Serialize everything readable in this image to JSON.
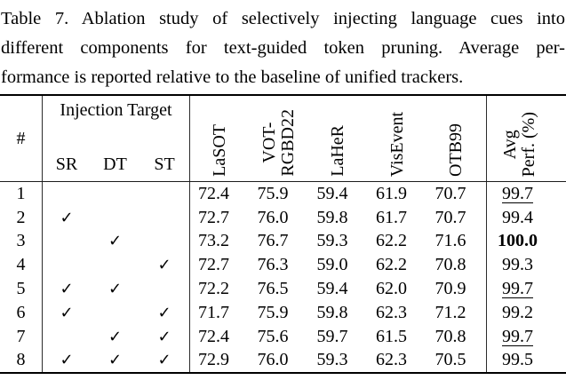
{
  "colors": {
    "text": "#000000",
    "background": "#ffffff",
    "rule": "#000000"
  },
  "caption": {
    "lines": [
      "Table 7. Ablation study of selectively injecting language cues into",
      "different components for text-guided token pruning. Average per-",
      "formance is reported relative to the baseline of unified trackers."
    ]
  },
  "table": {
    "checkmark": "✓",
    "row_index_header": "#",
    "group_header": "Injection Target",
    "injection_subcolumns": [
      "SR",
      "DT",
      "ST"
    ],
    "dataset_columns": [
      {
        "lines": [
          "LaSOT"
        ]
      },
      {
        "lines": [
          "VOT-",
          "RGBD22"
        ]
      },
      {
        "lines": [
          "LaHeR"
        ]
      },
      {
        "lines": [
          "VisEvent"
        ]
      },
      {
        "lines": [
          "OTB99"
        ]
      }
    ],
    "avg_column": {
      "lines": [
        "Avg",
        "Perf. (%)"
      ]
    },
    "rows": [
      {
        "num": "1",
        "checks": {
          "sr": false,
          "dt": false,
          "st": false
        },
        "values": [
          "72.4",
          "75.9",
          "59.4",
          "61.9",
          "70.7"
        ],
        "avg": "99.7",
        "avg_emphasis": "underline"
      },
      {
        "num": "2",
        "checks": {
          "sr": true,
          "dt": false,
          "st": false
        },
        "values": [
          "72.7",
          "76.0",
          "59.8",
          "61.7",
          "70.7"
        ],
        "avg": "99.4",
        "avg_emphasis": "none"
      },
      {
        "num": "3",
        "checks": {
          "sr": false,
          "dt": true,
          "st": false
        },
        "values": [
          "73.2",
          "76.7",
          "59.3",
          "62.2",
          "71.6"
        ],
        "avg": "100.0",
        "avg_emphasis": "bold"
      },
      {
        "num": "4",
        "checks": {
          "sr": false,
          "dt": false,
          "st": true
        },
        "values": [
          "72.7",
          "76.3",
          "59.0",
          "62.2",
          "70.8"
        ],
        "avg": "99.3",
        "avg_emphasis": "none"
      },
      {
        "num": "5",
        "checks": {
          "sr": true,
          "dt": true,
          "st": false
        },
        "values": [
          "72.2",
          "76.5",
          "59.4",
          "62.0",
          "70.9"
        ],
        "avg": "99.7",
        "avg_emphasis": "underline"
      },
      {
        "num": "6",
        "checks": {
          "sr": true,
          "dt": false,
          "st": true
        },
        "values": [
          "71.7",
          "75.9",
          "59.8",
          "62.3",
          "71.2"
        ],
        "avg": "99.2",
        "avg_emphasis": "none"
      },
      {
        "num": "7",
        "checks": {
          "sr": false,
          "dt": true,
          "st": true
        },
        "values": [
          "72.4",
          "75.6",
          "59.7",
          "61.5",
          "70.8"
        ],
        "avg": "99.7",
        "avg_emphasis": "underline"
      },
      {
        "num": "8",
        "checks": {
          "sr": true,
          "dt": true,
          "st": true
        },
        "values": [
          "72.9",
          "76.0",
          "59.3",
          "62.3",
          "70.5"
        ],
        "avg": "99.5",
        "avg_emphasis": "none"
      }
    ]
  }
}
